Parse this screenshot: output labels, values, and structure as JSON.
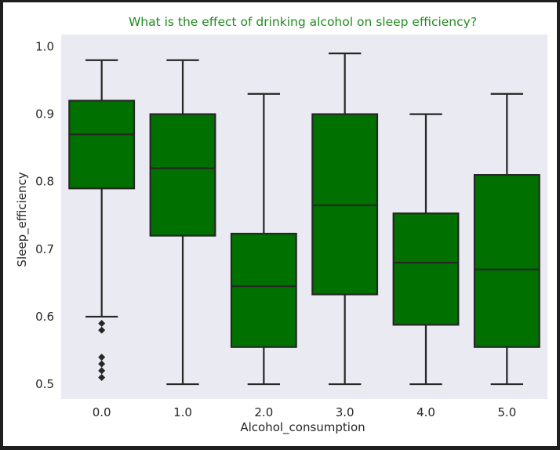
{
  "chart_data": {
    "type": "box",
    "title": "What is the effect of drinking alcohol on sleep efficiency?",
    "xlabel": "Alcohol_consumption",
    "ylabel": "Sleep_efficiency",
    "categories": [
      "0.0",
      "1.0",
      "2.0",
      "3.0",
      "4.0",
      "5.0"
    ],
    "ylim": [
      0.478,
      1.018
    ],
    "yticks": [
      "0.5",
      "0.6",
      "0.7",
      "0.8",
      "0.9",
      "1.0"
    ],
    "boxes": [
      {
        "category": "0.0",
        "whisker_low": 0.6,
        "q1": 0.79,
        "median": 0.87,
        "q3": 0.92,
        "whisker_high": 0.98,
        "outliers": [
          0.59,
          0.58,
          0.54,
          0.53,
          0.52,
          0.51
        ]
      },
      {
        "category": "1.0",
        "whisker_low": 0.5,
        "q1": 0.72,
        "median": 0.82,
        "q3": 0.9,
        "whisker_high": 0.98,
        "outliers": []
      },
      {
        "category": "2.0",
        "whisker_low": 0.5,
        "q1": 0.555,
        "median": 0.645,
        "q3": 0.723,
        "whisker_high": 0.93,
        "outliers": []
      },
      {
        "category": "3.0",
        "whisker_low": 0.5,
        "q1": 0.633,
        "median": 0.765,
        "q3": 0.9,
        "whisker_high": 0.99,
        "outliers": []
      },
      {
        "category": "4.0",
        "whisker_low": 0.5,
        "q1": 0.588,
        "median": 0.68,
        "q3": 0.753,
        "whisker_high": 0.9,
        "outliers": []
      },
      {
        "category": "5.0",
        "whisker_low": 0.5,
        "q1": 0.555,
        "median": 0.67,
        "q3": 0.81,
        "whisker_high": 0.93,
        "outliers": []
      }
    ],
    "grid": false,
    "legend": "none"
  },
  "colors": {
    "box_fill": "#007100",
    "line": "#262626",
    "plot_bg": "#eaeaf2",
    "title": "#228b22"
  }
}
